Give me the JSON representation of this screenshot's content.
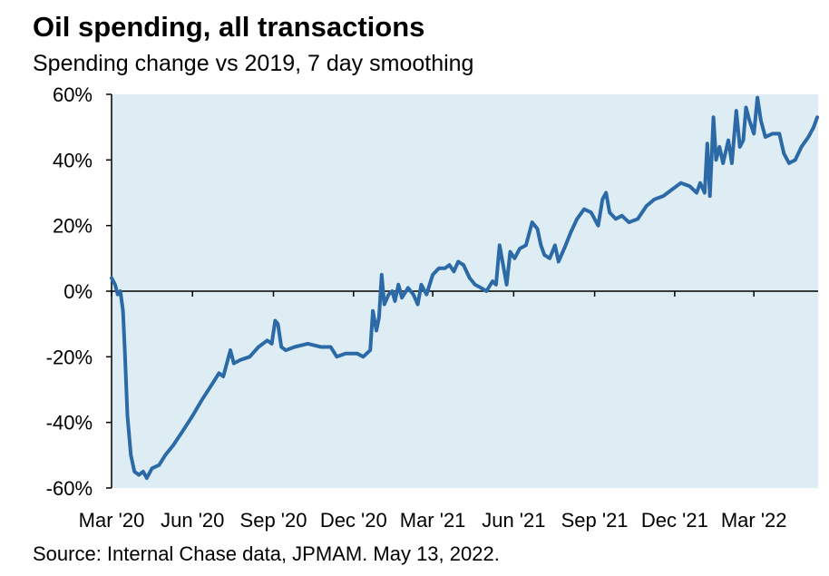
{
  "chart_data": {
    "type": "line",
    "title": "Oil spending, all transactions",
    "subtitle": "Spending change vs 2019, 7 day smoothing",
    "source": "Source: Internal Chase data, JPMAM. May 13, 2022.",
    "xlabel": "",
    "ylabel": "",
    "ylim": [
      -60,
      60
    ],
    "y_ticks": [
      60,
      40,
      20,
      0,
      -20,
      -40,
      -60
    ],
    "y_tick_labels": [
      "60%",
      "40%",
      "20%",
      "0%",
      "-20%",
      "-40%",
      "-60%"
    ],
    "x_ticks": [
      "2020-03-01",
      "2020-06-01",
      "2020-09-01",
      "2020-12-01",
      "2021-03-01",
      "2021-06-01",
      "2021-09-01",
      "2021-12-01",
      "2022-03-01"
    ],
    "x_tick_labels": [
      "Mar '20",
      "Jun '20",
      "Sep '20",
      "Dec '20",
      "Mar '21",
      "Jun '21",
      "Sep '21",
      "Dec '21",
      "Mar '22"
    ],
    "xlim": [
      "2020-03-01",
      "2022-05-13"
    ],
    "grid": false,
    "background_color": "#deedf3",
    "line_color": "#2b6aa6",
    "series": [
      {
        "values": [
          [
            "2020-03-01",
            4
          ],
          [
            "2020-03-05",
            2
          ],
          [
            "2020-03-08",
            -1
          ],
          [
            "2020-03-11",
            0
          ],
          [
            "2020-03-14",
            -6
          ],
          [
            "2020-03-16",
            -18
          ],
          [
            "2020-03-19",
            -38
          ],
          [
            "2020-03-23",
            -50
          ],
          [
            "2020-03-27",
            -55
          ],
          [
            "2020-04-01",
            -56
          ],
          [
            "2020-04-06",
            -55
          ],
          [
            "2020-04-10",
            -57
          ],
          [
            "2020-04-16",
            -54
          ],
          [
            "2020-04-24",
            -53
          ],
          [
            "2020-05-01",
            -50
          ],
          [
            "2020-05-10",
            -47
          ],
          [
            "2020-05-20",
            -43
          ],
          [
            "2020-06-01",
            -38
          ],
          [
            "2020-06-12",
            -33
          ],
          [
            "2020-06-24",
            -28
          ],
          [
            "2020-07-01",
            -25
          ],
          [
            "2020-07-06",
            -26
          ],
          [
            "2020-07-10",
            -22
          ],
          [
            "2020-07-14",
            -18
          ],
          [
            "2020-07-18",
            -22
          ],
          [
            "2020-07-25",
            -21
          ],
          [
            "2020-08-05",
            -20
          ],
          [
            "2020-08-15",
            -17
          ],
          [
            "2020-08-25",
            -15
          ],
          [
            "2020-08-30",
            -16
          ],
          [
            "2020-09-03",
            -9
          ],
          [
            "2020-09-06",
            -10
          ],
          [
            "2020-09-10",
            -17
          ],
          [
            "2020-09-15",
            -18
          ],
          [
            "2020-09-25",
            -17
          ],
          [
            "2020-10-10",
            -16
          ],
          [
            "2020-10-25",
            -17
          ],
          [
            "2020-11-05",
            -17
          ],
          [
            "2020-11-12",
            -20
          ],
          [
            "2020-11-22",
            -19
          ],
          [
            "2020-12-05",
            -19
          ],
          [
            "2020-12-12",
            -20
          ],
          [
            "2020-12-20",
            -18
          ],
          [
            "2020-12-23",
            -6
          ],
          [
            "2020-12-27",
            -12
          ],
          [
            "2020-12-30",
            -8
          ],
          [
            "2021-01-02",
            5
          ],
          [
            "2021-01-05",
            -4
          ],
          [
            "2021-01-10",
            -1
          ],
          [
            "2021-01-14",
            0
          ],
          [
            "2021-01-17",
            -3
          ],
          [
            "2021-01-21",
            2
          ],
          [
            "2021-01-25",
            -2
          ],
          [
            "2021-02-01",
            1
          ],
          [
            "2021-02-07",
            -1
          ],
          [
            "2021-02-12",
            -4
          ],
          [
            "2021-02-16",
            2
          ],
          [
            "2021-02-22",
            -1
          ],
          [
            "2021-03-01",
            5
          ],
          [
            "2021-03-08",
            7
          ],
          [
            "2021-03-15",
            7
          ],
          [
            "2021-03-20",
            8
          ],
          [
            "2021-03-25",
            6
          ],
          [
            "2021-03-30",
            9
          ],
          [
            "2021-04-05",
            8
          ],
          [
            "2021-04-12",
            4
          ],
          [
            "2021-04-18",
            2
          ],
          [
            "2021-04-25",
            1
          ],
          [
            "2021-05-01",
            0
          ],
          [
            "2021-05-08",
            3
          ],
          [
            "2021-05-12",
            2
          ],
          [
            "2021-05-16",
            14
          ],
          [
            "2021-05-20",
            8
          ],
          [
            "2021-05-24",
            2
          ],
          [
            "2021-05-28",
            12
          ],
          [
            "2021-06-02",
            10
          ],
          [
            "2021-06-08",
            13
          ],
          [
            "2021-06-15",
            14
          ],
          [
            "2021-06-22",
            21
          ],
          [
            "2021-06-28",
            19
          ],
          [
            "2021-07-02",
            14
          ],
          [
            "2021-07-06",
            11
          ],
          [
            "2021-07-12",
            10
          ],
          [
            "2021-07-18",
            14
          ],
          [
            "2021-07-22",
            9
          ],
          [
            "2021-07-30",
            14
          ],
          [
            "2021-08-05",
            18
          ],
          [
            "2021-08-12",
            22
          ],
          [
            "2021-08-20",
            25
          ],
          [
            "2021-08-28",
            24
          ],
          [
            "2021-09-05",
            20
          ],
          [
            "2021-09-10",
            28
          ],
          [
            "2021-09-14",
            30
          ],
          [
            "2021-09-18",
            24
          ],
          [
            "2021-09-25",
            22
          ],
          [
            "2021-10-02",
            23
          ],
          [
            "2021-10-10",
            21
          ],
          [
            "2021-10-20",
            22
          ],
          [
            "2021-10-30",
            26
          ],
          [
            "2021-11-08",
            28
          ],
          [
            "2021-11-18",
            29
          ],
          [
            "2021-11-28",
            31
          ],
          [
            "2021-12-08",
            33
          ],
          [
            "2021-12-18",
            32
          ],
          [
            "2021-12-26",
            30
          ],
          [
            "2021-12-30",
            33
          ],
          [
            "2022-01-04",
            30
          ],
          [
            "2022-01-07",
            45
          ],
          [
            "2022-01-10",
            29
          ],
          [
            "2022-01-14",
            53
          ],
          [
            "2022-01-17",
            40
          ],
          [
            "2022-01-21",
            44
          ],
          [
            "2022-01-25",
            39
          ],
          [
            "2022-01-31",
            46
          ],
          [
            "2022-02-04",
            39
          ],
          [
            "2022-02-09",
            55
          ],
          [
            "2022-02-13",
            44
          ],
          [
            "2022-02-17",
            46
          ],
          [
            "2022-02-20",
            56
          ],
          [
            "2022-02-24",
            52
          ],
          [
            "2022-03-01",
            48
          ],
          [
            "2022-03-05",
            59
          ],
          [
            "2022-03-09",
            52
          ],
          [
            "2022-03-14",
            47
          ],
          [
            "2022-03-22",
            48
          ],
          [
            "2022-03-30",
            48
          ],
          [
            "2022-04-04",
            42
          ],
          [
            "2022-04-10",
            39
          ],
          [
            "2022-04-17",
            40
          ],
          [
            "2022-04-24",
            44
          ],
          [
            "2022-05-02",
            47
          ],
          [
            "2022-05-08",
            50
          ],
          [
            "2022-05-12",
            53
          ]
        ]
      }
    ]
  }
}
